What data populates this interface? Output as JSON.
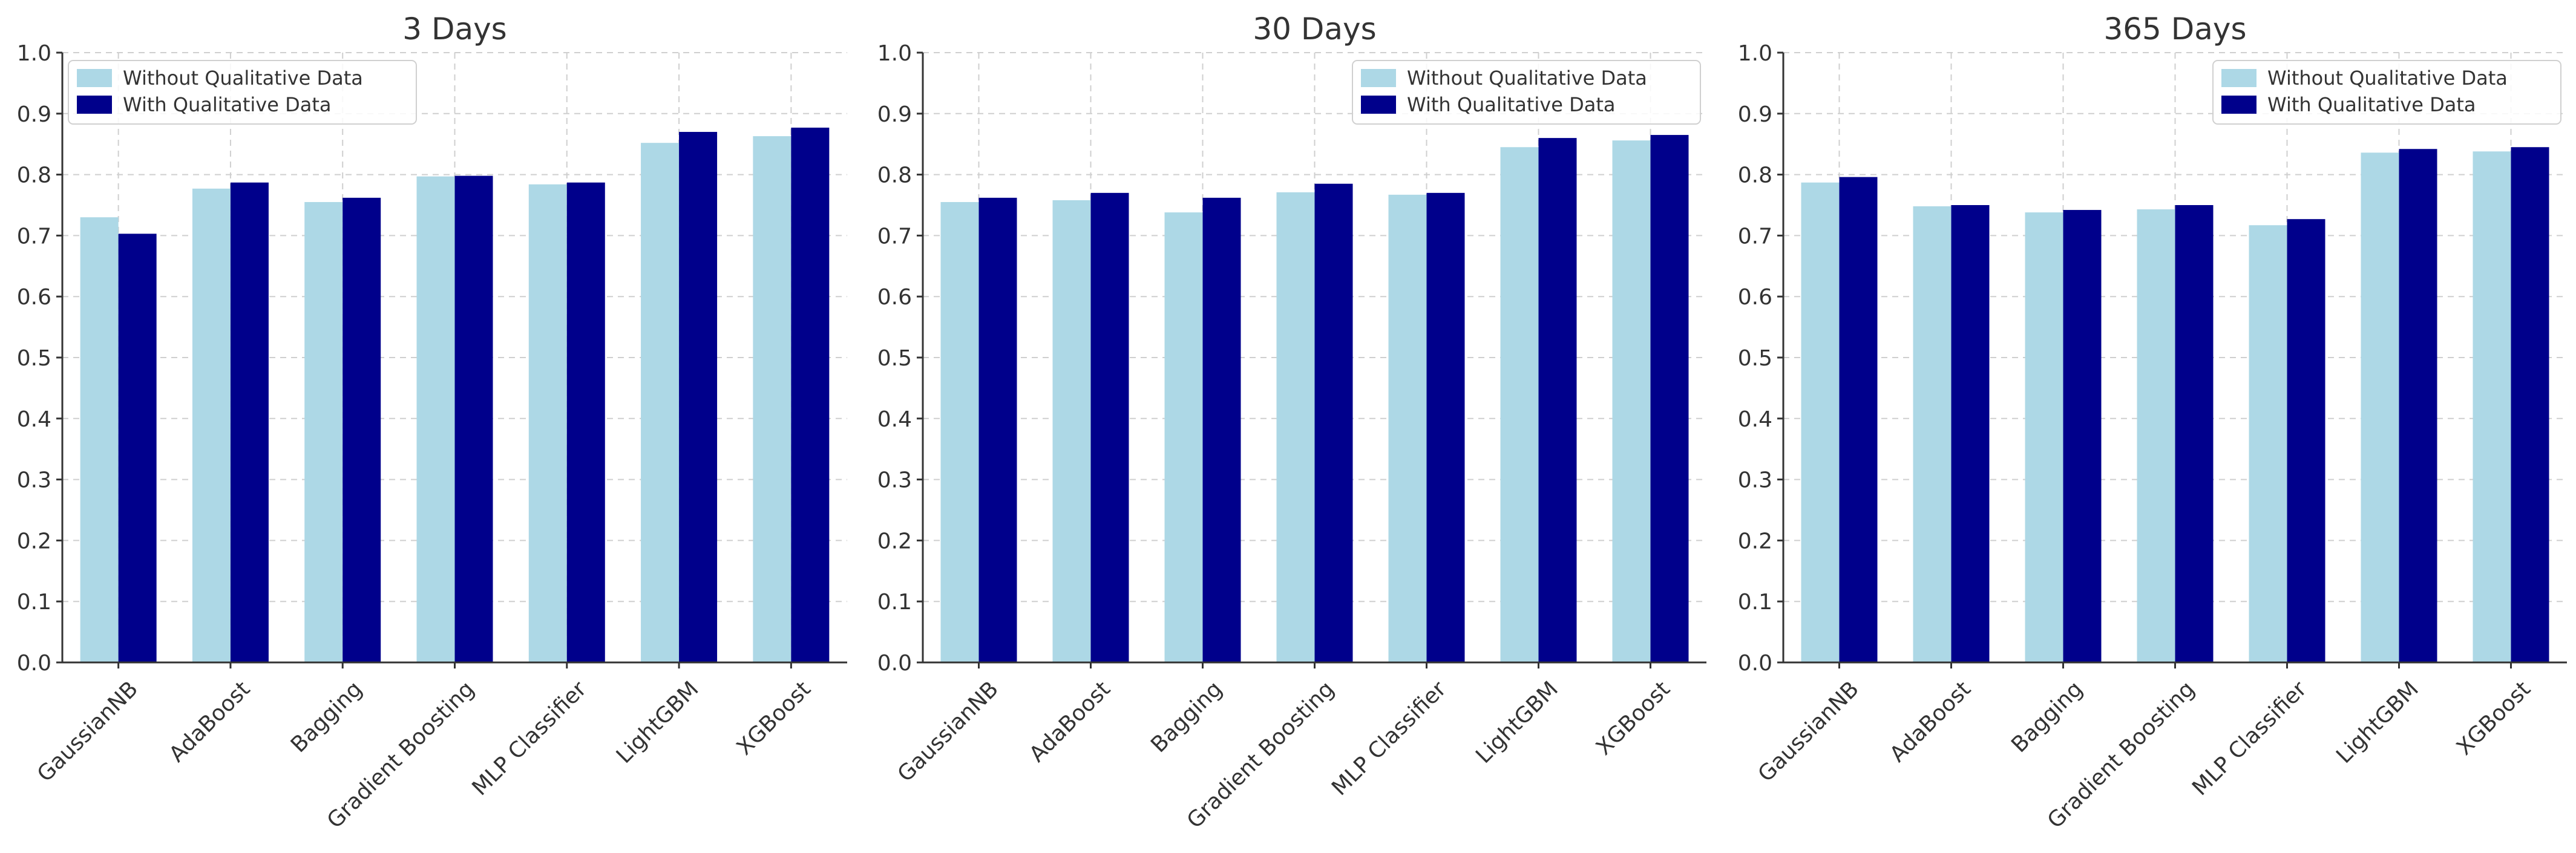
{
  "chart_data": [
    {
      "type": "bar",
      "title": "3 Days",
      "categories": [
        "GaussianNB",
        "AdaBoost",
        "Bagging",
        "Gradient Boosting",
        "MLP Classifier",
        "LightGBM",
        "XGBoost"
      ],
      "series": [
        {
          "name": "Without Qualitative Data",
          "color": "#add8e6",
          "values": [
            0.73,
            0.777,
            0.755,
            0.797,
            0.784,
            0.852,
            0.863
          ]
        },
        {
          "name": "With Qualitative Data",
          "color": "#00008b",
          "values": [
            0.703,
            0.787,
            0.762,
            0.798,
            0.787,
            0.87,
            0.877
          ]
        }
      ],
      "ylim": [
        0,
        1.0
      ],
      "yticks": [
        "0.0",
        "0.1",
        "0.2",
        "0.3",
        "0.4",
        "0.5",
        "0.6",
        "0.7",
        "0.8",
        "0.9",
        "1.0"
      ],
      "grid": true,
      "legend_position": "top-left"
    },
    {
      "type": "bar",
      "title": "30 Days",
      "categories": [
        "GaussianNB",
        "AdaBoost",
        "Bagging",
        "Gradient Boosting",
        "MLP Classifier",
        "LightGBM",
        "XGBoost"
      ],
      "series": [
        {
          "name": "Without Qualitative Data",
          "color": "#add8e6",
          "values": [
            0.755,
            0.758,
            0.738,
            0.771,
            0.767,
            0.845,
            0.856
          ]
        },
        {
          "name": "With Qualitative Data",
          "color": "#00008b",
          "values": [
            0.762,
            0.77,
            0.762,
            0.785,
            0.77,
            0.86,
            0.865
          ]
        }
      ],
      "ylim": [
        0,
        1.0
      ],
      "yticks": [
        "0.0",
        "0.1",
        "0.2",
        "0.3",
        "0.4",
        "0.5",
        "0.6",
        "0.7",
        "0.8",
        "0.9",
        "1.0"
      ],
      "grid": true,
      "legend_position": "top-right"
    },
    {
      "type": "bar",
      "title": "365 Days",
      "categories": [
        "GaussianNB",
        "AdaBoost",
        "Bagging",
        "Gradient Boosting",
        "MLP Classifier",
        "LightGBM",
        "XGBoost"
      ],
      "series": [
        {
          "name": "Without Qualitative Data",
          "color": "#add8e6",
          "values": [
            0.787,
            0.748,
            0.738,
            0.743,
            0.717,
            0.836,
            0.838
          ]
        },
        {
          "name": "With Qualitative Data",
          "color": "#00008b",
          "values": [
            0.796,
            0.75,
            0.742,
            0.75,
            0.727,
            0.842,
            0.845
          ]
        }
      ],
      "ylim": [
        0,
        1.0
      ],
      "yticks": [
        "0.0",
        "0.1",
        "0.2",
        "0.3",
        "0.4",
        "0.5",
        "0.6",
        "0.7",
        "0.8",
        "0.9",
        "1.0"
      ],
      "grid": true,
      "legend_position": "top-right"
    }
  ]
}
